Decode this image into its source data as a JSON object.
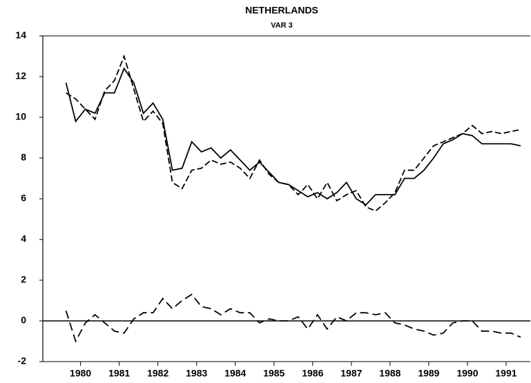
{
  "chart_data": {
    "type": "line",
    "title": "NETHERLANDS",
    "subtitle": "VAR 3",
    "x": [
      1980,
      1980.25,
      1980.5,
      1980.75,
      1981,
      1981.25,
      1981.5,
      1981.75,
      1982,
      1982.25,
      1982.5,
      1982.75,
      1983,
      1983.25,
      1983.5,
      1983.75,
      1984,
      1984.25,
      1984.5,
      1984.75,
      1985,
      1985.25,
      1985.5,
      1985.75,
      1986,
      1986.25,
      1986.5,
      1986.75,
      1987,
      1987.25,
      1987.5,
      1987.75,
      1988,
      1988.25,
      1988.5,
      1988.75,
      1989,
      1989.25,
      1989.5,
      1989.75,
      1990,
      1990.25,
      1990.5,
      1990.75,
      1991,
      1991.25,
      1991.5,
      1991.75
    ],
    "series": [
      {
        "color": "#000000",
        "style": "solid",
        "values": [
          11.7,
          9.8,
          10.4,
          10.2,
          11.2,
          11.2,
          12.4,
          11.7,
          10.2,
          10.7,
          9.9,
          7.4,
          7.5,
          8.8,
          8.3,
          8.5,
          8.0,
          8.4,
          7.9,
          7.4,
          7.8,
          7.3,
          6.8,
          6.7,
          6.4,
          6.1,
          6.3,
          6.0,
          6.3,
          6.8,
          6.0,
          5.7,
          6.2,
          6.2,
          6.2,
          7.0,
          7.0,
          7.4,
          8.0,
          8.7,
          8.9,
          9.2,
          9.1,
          8.7,
          8.7,
          8.7,
          8.7,
          8.6
        ]
      },
      {
        "color": "#000000",
        "style": "dashed",
        "values": [
          11.2,
          10.9,
          10.4,
          9.9,
          11.3,
          11.8,
          13.0,
          11.4,
          9.8,
          10.3,
          9.7,
          6.8,
          6.5,
          7.4,
          7.5,
          7.9,
          7.7,
          7.8,
          7.5,
          7.0,
          7.9,
          7.2,
          6.8,
          6.7,
          6.2,
          6.7,
          6.0,
          6.8,
          5.9,
          6.2,
          6.4,
          5.6,
          5.4,
          5.8,
          6.3,
          7.4,
          7.4,
          8.0,
          8.6,
          8.8,
          9.0,
          9.2,
          9.6,
          9.2,
          9.3,
          9.2,
          9.3,
          9.4
        ]
      },
      {
        "color": "#000000",
        "style": "longdash",
        "values": [
          0.5,
          -1.0,
          -0.1,
          0.3,
          -0.1,
          -0.5,
          -0.6,
          0.1,
          0.4,
          0.4,
          1.1,
          0.6,
          1.0,
          1.3,
          0.7,
          0.6,
          0.3,
          0.6,
          0.4,
          0.4,
          -0.1,
          0.1,
          0.0,
          0.0,
          0.2,
          -0.4,
          0.3,
          -0.4,
          0.2,
          0.0,
          0.4,
          0.4,
          0.3,
          0.4,
          -0.1,
          -0.2,
          -0.4,
          -0.5,
          -0.7,
          -0.6,
          -0.1,
          0.0,
          0.0,
          -0.5,
          -0.5,
          -0.6,
          -0.6,
          -0.8
        ]
      }
    ],
    "xlim": [
      1979.4,
      1992
    ],
    "xticks": [
      {
        "value": 1980.375,
        "label": "1980"
      },
      {
        "value": 1981.375,
        "label": "1981"
      },
      {
        "value": 1982.375,
        "label": "1982"
      },
      {
        "value": 1983.375,
        "label": "1983"
      },
      {
        "value": 1984.375,
        "label": "1984"
      },
      {
        "value": 1985.375,
        "label": "1985"
      },
      {
        "value": 1986.375,
        "label": "1986"
      },
      {
        "value": 1987.375,
        "label": "1987"
      },
      {
        "value": 1988.375,
        "label": "1988"
      },
      {
        "value": 1989.375,
        "label": "1989"
      },
      {
        "value": 1990.375,
        "label": "1990"
      },
      {
        "value": 1991.375,
        "label": "1991"
      }
    ],
    "ylim": [
      -2,
      14
    ],
    "yticks": [
      -2,
      0,
      2,
      4,
      6,
      8,
      10,
      12,
      14
    ],
    "zero_line": true,
    "grid": false
  }
}
